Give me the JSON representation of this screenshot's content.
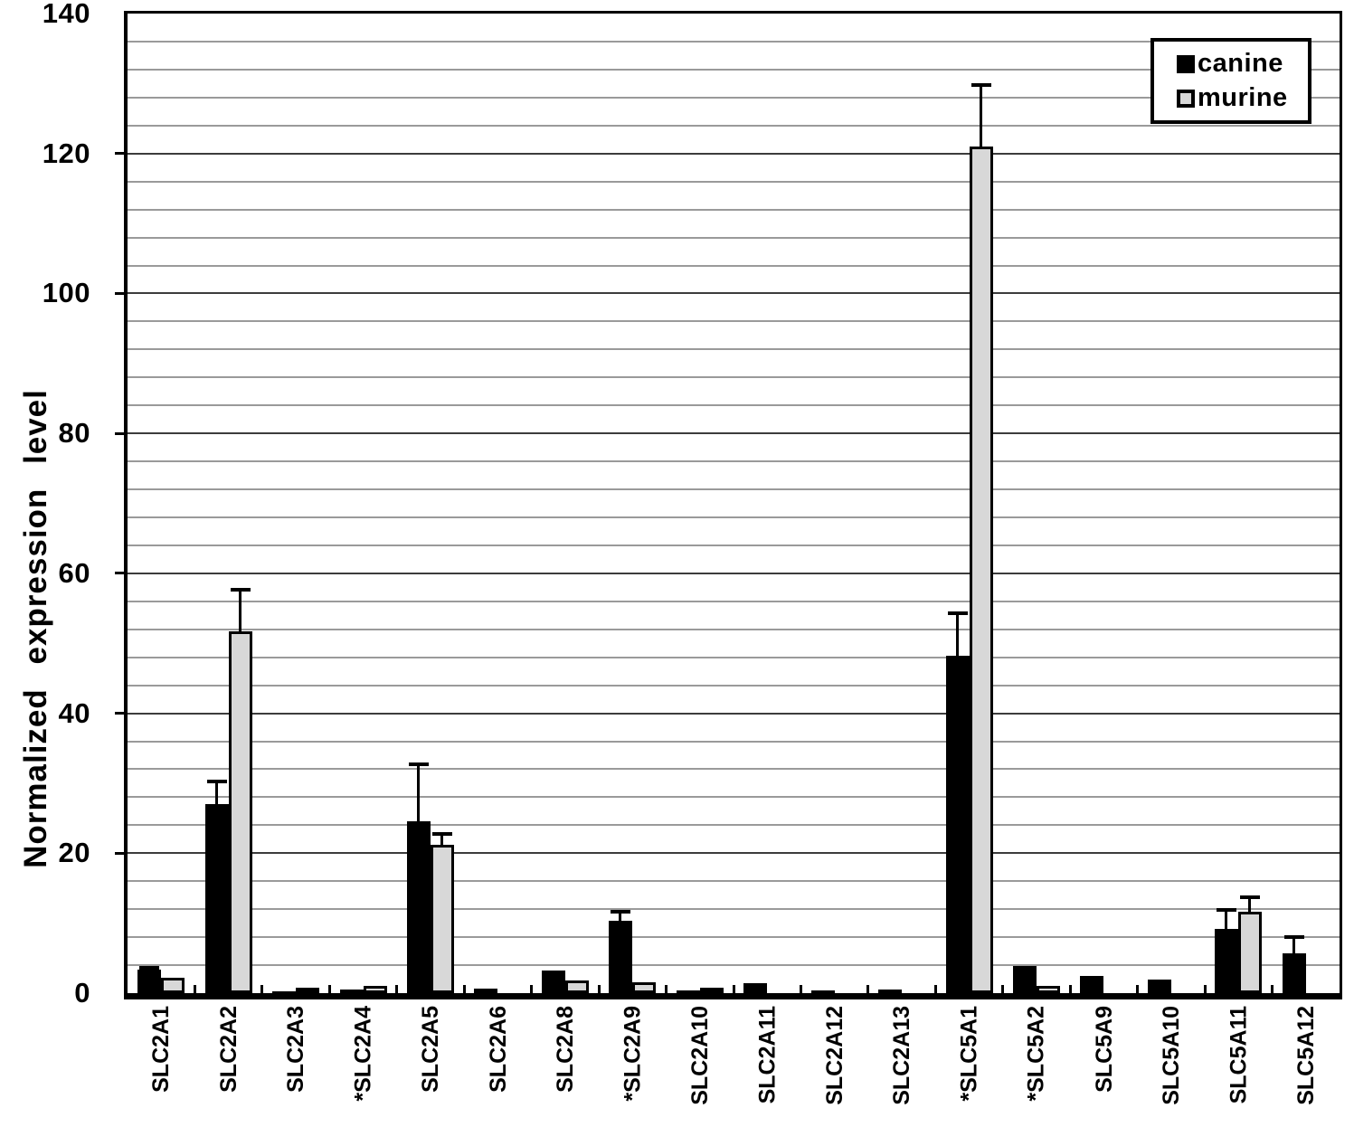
{
  "figure": {
    "legend": {
      "items": [
        {
          "label": "canine",
          "color": "#000000"
        },
        {
          "label": "murine",
          "color": "#d8d8d8"
        }
      ]
    }
  },
  "chart_data": {
    "type": "bar",
    "title": "",
    "xlabel": "",
    "ylabel": "Normalized expression level",
    "ylim": [
      0,
      140
    ],
    "y_major_step": 20,
    "y_minor_step": 4,
    "y_ticks": [
      0,
      20,
      40,
      60,
      80,
      100,
      120,
      140
    ],
    "grid": "horizontal",
    "legend_position": "top-right",
    "categories": [
      "SLC2A1",
      "SLC2A2",
      "SLC2A3",
      "*SLC2A4",
      "SLC2A5",
      "SLC2A6",
      "SLC2A8",
      "*SLC2A9",
      "SLC2A10",
      "SLC2A11",
      "SLC2A12",
      "SLC2A13",
      "*SLC5A1",
      "*SLC5A2",
      "SLC5A9",
      "SLC5A10",
      "SLC5A11",
      "SLC5A12"
    ],
    "series": [
      {
        "name": "canine",
        "color": "#000000",
        "values": [
          3.4,
          27,
          0.3,
          0.5,
          24.5,
          0.6,
          3.2,
          10.4,
          0.4,
          1.4,
          0.4,
          0.5,
          48.2,
          3.9,
          2.5,
          2.0,
          9.2,
          5.7
        ],
        "errors_plus": [
          0.5,
          3.5,
          null,
          null,
          8.5,
          null,
          null,
          1.5,
          null,
          null,
          null,
          null,
          6.3,
          null,
          null,
          null,
          2.9,
          2.6
        ]
      },
      {
        "name": "murine",
        "color": "#d8d8d8",
        "values": [
          2.2,
          51.7,
          0.7,
          1.1,
          21.2,
          0,
          1.8,
          1.5,
          0.3,
          0,
          0,
          0,
          121,
          1.0,
          0,
          0,
          11.7,
          0
        ],
        "errors_plus": [
          null,
          6.2,
          null,
          null,
          1.8,
          null,
          null,
          null,
          null,
          null,
          null,
          null,
          9,
          null,
          null,
          null,
          2.2,
          null
        ]
      }
    ]
  }
}
